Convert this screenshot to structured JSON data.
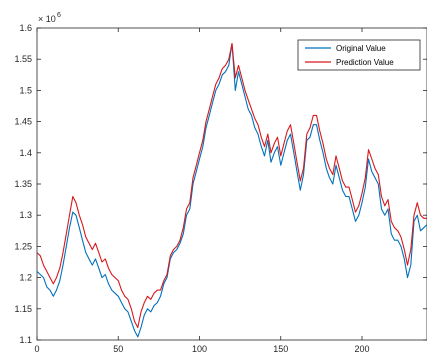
{
  "chart_data": {
    "type": "line",
    "title": "",
    "xlabel": "",
    "ylabel": "",
    "y_multiplier": "× 10^6",
    "y_multiplier_base": "× 10",
    "y_multiplier_exp": "6",
    "xlim": [
      0,
      240
    ],
    "ylim": [
      1.1,
      1.6
    ],
    "xticks": [
      0,
      50,
      100,
      150,
      200
    ],
    "yticks": [
      1.1,
      1.15,
      1.2,
      1.25,
      1.3,
      1.35,
      1.4,
      1.45,
      1.5,
      1.55,
      1.6
    ],
    "grid": false,
    "legend_position": "top-right",
    "series": [
      {
        "name": "Original Value",
        "color": "#0072BD",
        "x": [
          0,
          2,
          4,
          6,
          8,
          10,
          12,
          14,
          16,
          18,
          20,
          22,
          24,
          26,
          28,
          30,
          32,
          34,
          36,
          38,
          40,
          42,
          44,
          46,
          48,
          50,
          52,
          54,
          56,
          58,
          60,
          62,
          64,
          66,
          68,
          70,
          72,
          74,
          76,
          78,
          80,
          82,
          84,
          86,
          88,
          90,
          92,
          94,
          96,
          98,
          100,
          102,
          104,
          106,
          108,
          110,
          112,
          114,
          116,
          118,
          120,
          122,
          124,
          126,
          128,
          130,
          132,
          134,
          136,
          138,
          140,
          142,
          144,
          146,
          148,
          150,
          152,
          154,
          156,
          158,
          160,
          162,
          164,
          166,
          168,
          170,
          172,
          174,
          176,
          178,
          180,
          182,
          184,
          186,
          188,
          190,
          192,
          194,
          196,
          198,
          200,
          202,
          204,
          206,
          208,
          210,
          212,
          214,
          216,
          218,
          220,
          222,
          224,
          226,
          228,
          230,
          232,
          234,
          236,
          238,
          240
        ],
        "values": [
          1.21,
          1.205,
          1.2,
          1.185,
          1.18,
          1.17,
          1.18,
          1.195,
          1.22,
          1.25,
          1.28,
          1.305,
          1.3,
          1.28,
          1.26,
          1.24,
          1.23,
          1.22,
          1.23,
          1.215,
          1.2,
          1.205,
          1.19,
          1.18,
          1.175,
          1.17,
          1.16,
          1.15,
          1.145,
          1.13,
          1.115,
          1.105,
          1.12,
          1.14,
          1.15,
          1.145,
          1.155,
          1.16,
          1.17,
          1.19,
          1.2,
          1.23,
          1.24,
          1.245,
          1.255,
          1.27,
          1.3,
          1.31,
          1.35,
          1.37,
          1.39,
          1.41,
          1.44,
          1.46,
          1.48,
          1.5,
          1.51,
          1.525,
          1.53,
          1.54,
          1.575,
          1.5,
          1.53,
          1.51,
          1.49,
          1.47,
          1.46,
          1.44,
          1.43,
          1.41,
          1.395,
          1.42,
          1.385,
          1.4,
          1.41,
          1.38,
          1.4,
          1.42,
          1.43,
          1.4,
          1.37,
          1.34,
          1.365,
          1.42,
          1.425,
          1.445,
          1.445,
          1.42,
          1.4,
          1.375,
          1.36,
          1.35,
          1.38,
          1.36,
          1.34,
          1.33,
          1.33,
          1.31,
          1.29,
          1.3,
          1.32,
          1.345,
          1.39,
          1.37,
          1.36,
          1.35,
          1.31,
          1.3,
          1.31,
          1.27,
          1.26,
          1.26,
          1.25,
          1.23,
          1.2,
          1.22,
          1.29,
          1.3,
          1.275,
          1.28,
          1.285
        ]
      },
      {
        "name": "Prediction Value",
        "color": "#D7191C",
        "x": [
          0,
          2,
          4,
          6,
          8,
          10,
          12,
          14,
          16,
          18,
          20,
          22,
          24,
          26,
          28,
          30,
          32,
          34,
          36,
          38,
          40,
          42,
          44,
          46,
          48,
          50,
          52,
          54,
          56,
          58,
          60,
          62,
          64,
          66,
          68,
          70,
          72,
          74,
          76,
          78,
          80,
          82,
          84,
          86,
          88,
          90,
          92,
          94,
          96,
          98,
          100,
          102,
          104,
          106,
          108,
          110,
          112,
          114,
          116,
          118,
          120,
          122,
          124,
          126,
          128,
          130,
          132,
          134,
          136,
          138,
          140,
          142,
          144,
          146,
          148,
          150,
          152,
          154,
          156,
          158,
          160,
          162,
          164,
          166,
          168,
          170,
          172,
          174,
          176,
          178,
          180,
          182,
          184,
          186,
          188,
          190,
          192,
          194,
          196,
          198,
          200,
          202,
          204,
          206,
          208,
          210,
          212,
          214,
          216,
          218,
          220,
          222,
          224,
          226,
          228,
          230,
          232,
          234,
          236,
          238,
          240
        ],
        "values": [
          1.24,
          1.235,
          1.22,
          1.21,
          1.2,
          1.19,
          1.2,
          1.215,
          1.24,
          1.27,
          1.3,
          1.33,
          1.32,
          1.3,
          1.285,
          1.265,
          1.255,
          1.245,
          1.255,
          1.24,
          1.225,
          1.23,
          1.215,
          1.205,
          1.2,
          1.195,
          1.18,
          1.17,
          1.165,
          1.15,
          1.13,
          1.12,
          1.145,
          1.16,
          1.17,
          1.165,
          1.175,
          1.18,
          1.18,
          1.195,
          1.205,
          1.235,
          1.245,
          1.25,
          1.26,
          1.28,
          1.31,
          1.32,
          1.36,
          1.38,
          1.4,
          1.42,
          1.45,
          1.47,
          1.49,
          1.51,
          1.52,
          1.535,
          1.54,
          1.55,
          1.575,
          1.52,
          1.54,
          1.52,
          1.5,
          1.485,
          1.47,
          1.455,
          1.445,
          1.425,
          1.41,
          1.43,
          1.4,
          1.415,
          1.425,
          1.395,
          1.415,
          1.435,
          1.445,
          1.415,
          1.385,
          1.355,
          1.375,
          1.43,
          1.44,
          1.46,
          1.46,
          1.435,
          1.415,
          1.39,
          1.375,
          1.365,
          1.395,
          1.375,
          1.355,
          1.345,
          1.345,
          1.325,
          1.305,
          1.315,
          1.335,
          1.36,
          1.405,
          1.39,
          1.375,
          1.365,
          1.33,
          1.315,
          1.325,
          1.29,
          1.28,
          1.275,
          1.265,
          1.245,
          1.22,
          1.245,
          1.3,
          1.32,
          1.3,
          1.295,
          1.295
        ]
      }
    ]
  }
}
